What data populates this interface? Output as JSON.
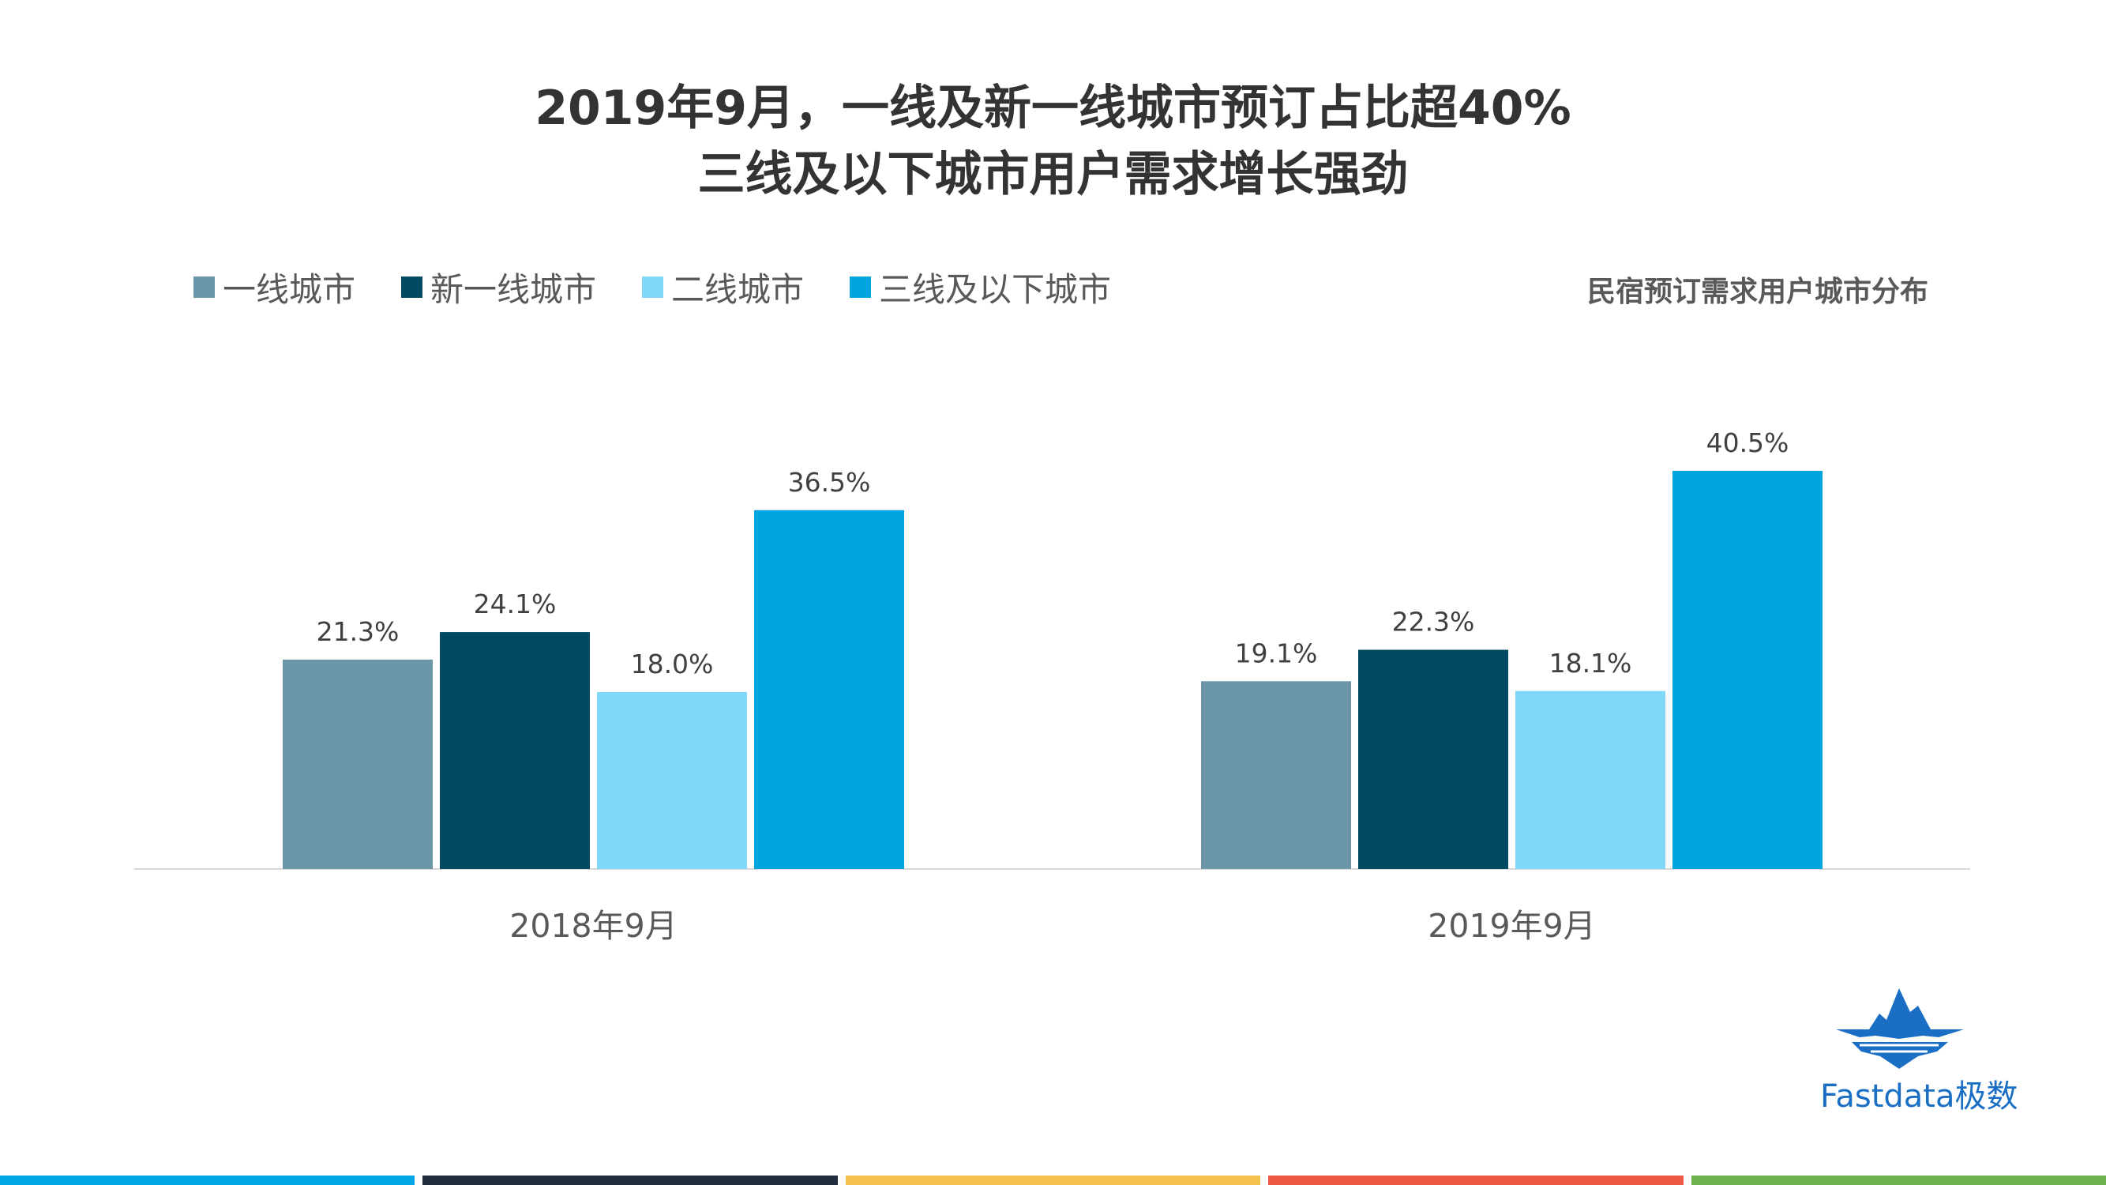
{
  "chart_data": {
    "type": "bar",
    "title": "2019年9月，一线及新一线城市预订占比超40%",
    "subtitle": "三线及以下城市用户需求增长强劲",
    "caption": "民宿预订需求用户城市分布",
    "categories": [
      "2018年9月",
      "2019年9月"
    ],
    "series": [
      {
        "name": "一线城市",
        "color": "#6b96a8",
        "values": [
          21.3,
          19.1
        ],
        "labels": [
          "21.3%",
          "19.1%"
        ]
      },
      {
        "name": "新一线城市",
        "color": "#014b62",
        "values": [
          24.1,
          22.3
        ],
        "labels": [
          "24.1%",
          "22.3%"
        ]
      },
      {
        "name": "二线城市",
        "color": "#7fd8f8",
        "values": [
          18.0,
          18.1
        ],
        "labels": [
          "18.0%",
          "18.1%"
        ]
      },
      {
        "name": "三线及以下城市",
        "color": "#00a5dd",
        "values": [
          36.5,
          40.5
        ],
        "labels": [
          "36.5%",
          "40.5%"
        ]
      }
    ],
    "ylim": [
      0,
      45
    ],
    "grid": false,
    "legend": "top-left"
  },
  "logo": {
    "text": "Fastdata极数",
    "color": "#1a6fc4"
  },
  "footer_colors": [
    "#00a5e3",
    "#1f2d3d",
    "#f5c14e",
    "#ec5a45",
    "#6cb04f"
  ]
}
